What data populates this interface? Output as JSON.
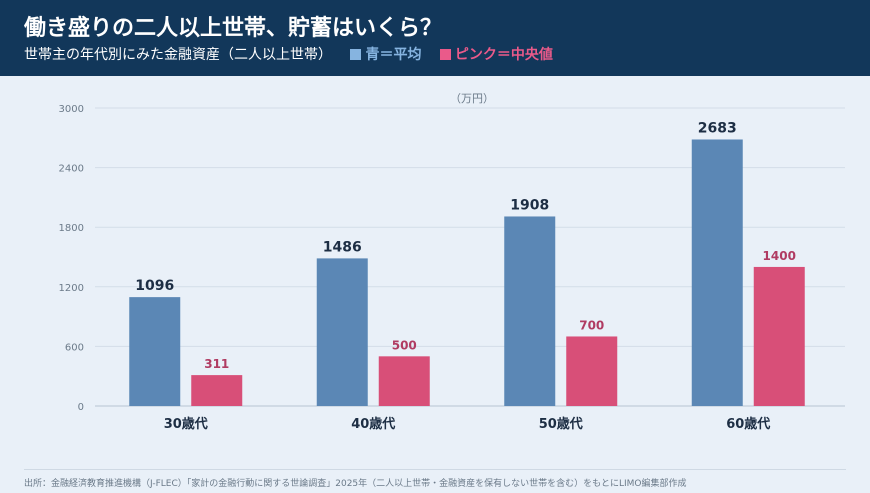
{
  "header": {
    "title": "働き盛りの二人以上世帯、貯蓄はいくら？",
    "subtitle": "世帯主の年代別にみた金融資産（二人以上世帯）",
    "legend_blue": "青＝平均",
    "legend_pink": "ピンク＝中央値"
  },
  "source": "出所：金融経済教育推進機構（J-FLEC）「家計の金融行動に関する世論調査」2025年（二人以上世帯・金融資産を保有しない世帯を含む）をもとにLIMO編集部作成",
  "colors": {
    "header_bg": "#12375a",
    "page_bg": "#e9f0f8",
    "average": "#5b87b5",
    "median": "#d84f78",
    "average_label": "#1d2e44",
    "median_label": "#b03b62"
  },
  "chart_data": {
    "type": "bar",
    "unit": "（万円）",
    "categories": [
      "30歳代",
      "40歳代",
      "50歳代",
      "60歳代"
    ],
    "series": [
      {
        "name": "青＝平均",
        "values": [
          1096,
          1486,
          1908,
          2683
        ]
      },
      {
        "name": "ピンク＝中央値",
        "values": [
          311,
          500,
          700,
          1400
        ]
      }
    ],
    "yticks": [
      0,
      600,
      1200,
      1800,
      2400,
      3000
    ],
    "ylim": [
      0,
      3000
    ],
    "grid": true
  }
}
